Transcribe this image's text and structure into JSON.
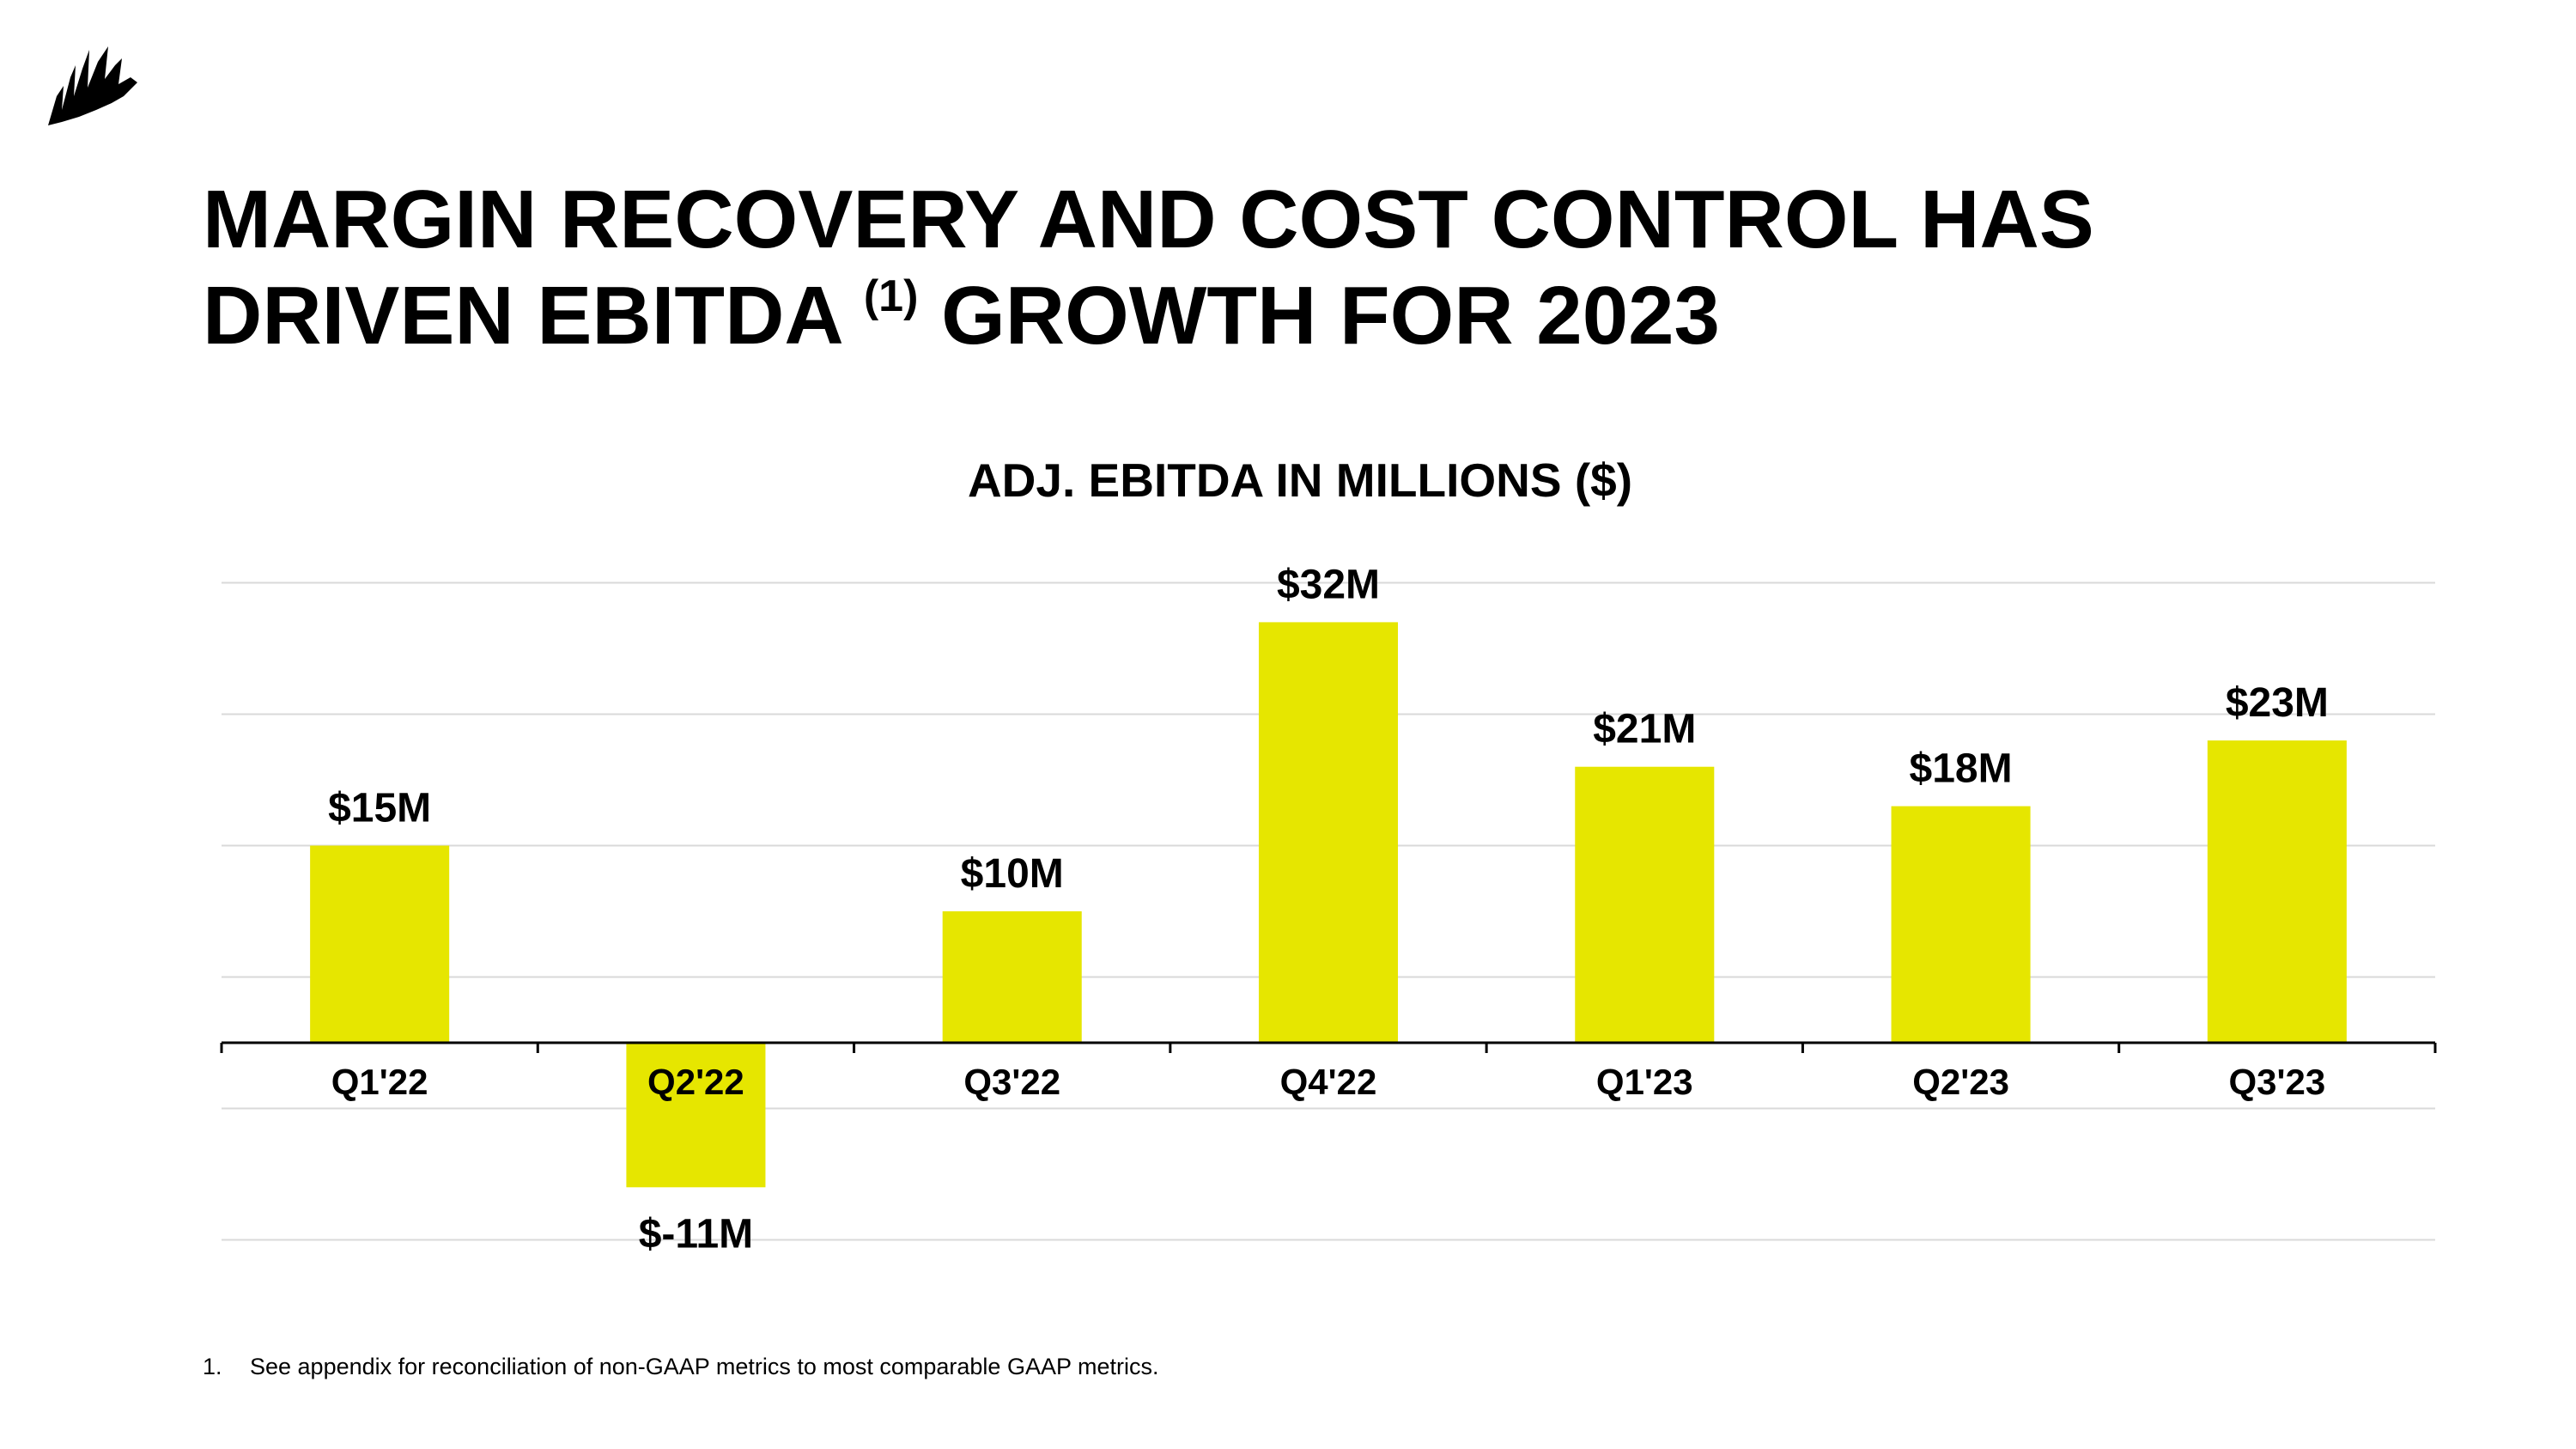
{
  "page": {
    "headline_line1": "MARGIN RECOVERY AND COST CONTROL HAS",
    "headline_line2_pre": "DRIVEN EBITDA",
    "headline_sup": "(1)",
    "headline_line2_post": "GROWTH FOR 2023",
    "footnote_number": "1.",
    "footnote_text": "See appendix for reconciliation of non-GAAP metrics to most comparable GAAP metrics.",
    "logo_icon": "sails-logo-icon",
    "colors": {
      "bar": "#E6E600",
      "grid": "#D9D9D9",
      "axis": "#000000",
      "text": "#000000"
    }
  },
  "chart_data": {
    "type": "bar",
    "title": "ADJ. EBITDA IN MILLIONS ($)",
    "xlabel": "",
    "ylabel": "",
    "categories": [
      "Q1'22",
      "Q2'22",
      "Q3'22",
      "Q4'22",
      "Q1'23",
      "Q2'23",
      "Q3'23"
    ],
    "values": [
      15,
      -11,
      10,
      32,
      21,
      18,
      23
    ],
    "data_labels": [
      "$15M",
      "$-11M",
      "$10M",
      "$32M",
      "$21M",
      "$18M",
      "$23M"
    ],
    "ylim": [
      -15,
      35
    ],
    "grid_step": 10,
    "grid": true,
    "legend": "none"
  }
}
